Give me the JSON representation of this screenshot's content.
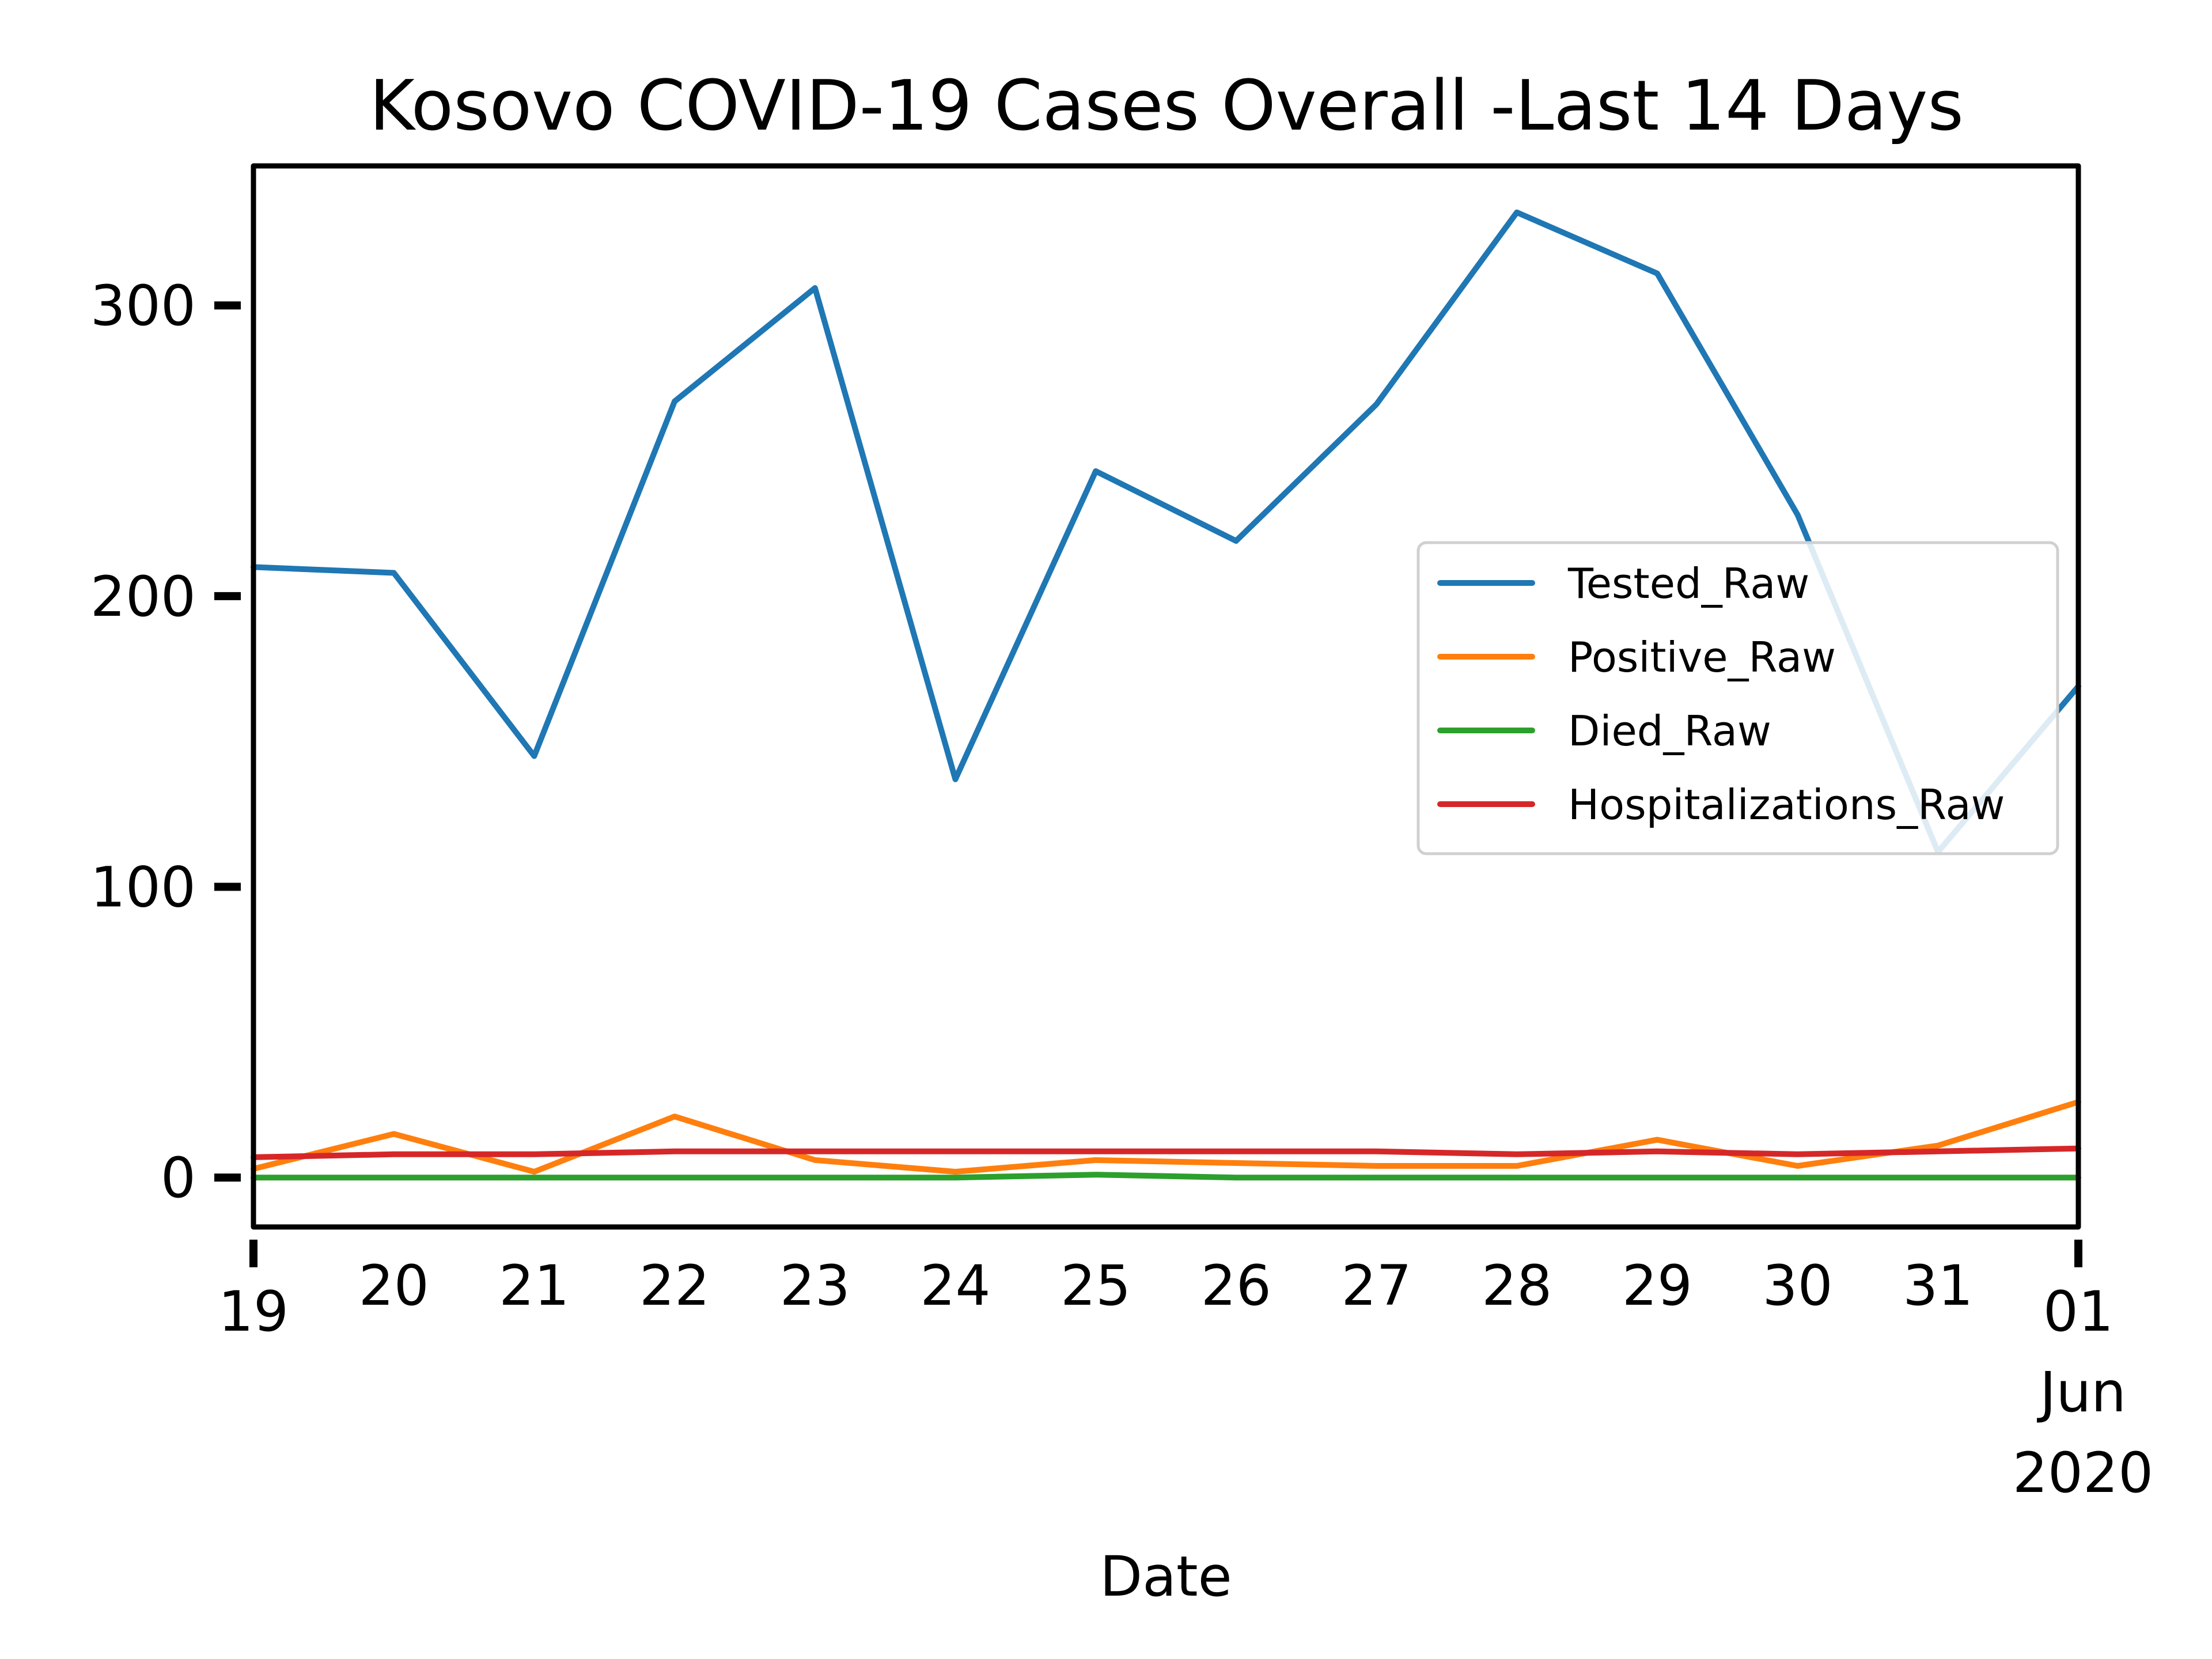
{
  "chart_data": {
    "type": "line",
    "title": "Kosovo COVID-19 Cases Overall -Last 14 Days",
    "xlabel": "Date",
    "ylabel": "",
    "x": [
      "2020-05-19",
      "2020-05-20",
      "2020-05-21",
      "2020-05-22",
      "2020-05-23",
      "2020-05-24",
      "2020-05-25",
      "2020-05-26",
      "2020-05-27",
      "2020-05-28",
      "2020-05-29",
      "2020-05-30",
      "2020-05-31",
      "2020-06-01"
    ],
    "x_tick_labels": [
      "19",
      "20",
      "21",
      "22",
      "23",
      "24",
      "25",
      "26",
      "27",
      "28",
      "29",
      "30",
      "31",
      "01"
    ],
    "x_tick_sublabels": [
      "Jun",
      "2020"
    ],
    "y_ticks": [
      0,
      100,
      200,
      300
    ],
    "ylim": [
      -17,
      348
    ],
    "grid": false,
    "legend_position": "center-right",
    "series": [
      {
        "name": "Tested_Raw",
        "color": "#1f77b4",
        "values": [
          210,
          208,
          145,
          267,
          306,
          137,
          243,
          219,
          266,
          332,
          311,
          228,
          112,
          169
        ]
      },
      {
        "name": "Positive_Raw",
        "color": "#ff7f0e",
        "values": [
          3,
          15,
          2,
          21,
          6,
          2,
          6,
          5,
          4,
          4,
          13,
          4,
          11,
          26
        ]
      },
      {
        "name": "Died_Raw",
        "color": "#2ca02c",
        "values": [
          0,
          0,
          0,
          0,
          0,
          0,
          1,
          0,
          0,
          0,
          0,
          0,
          0,
          0
        ]
      },
      {
        "name": "Hospitalizations_Raw",
        "color": "#d62728",
        "values": [
          7,
          8,
          8,
          9,
          9,
          9,
          9,
          9,
          9,
          8,
          9,
          8,
          9,
          10
        ]
      }
    ]
  }
}
